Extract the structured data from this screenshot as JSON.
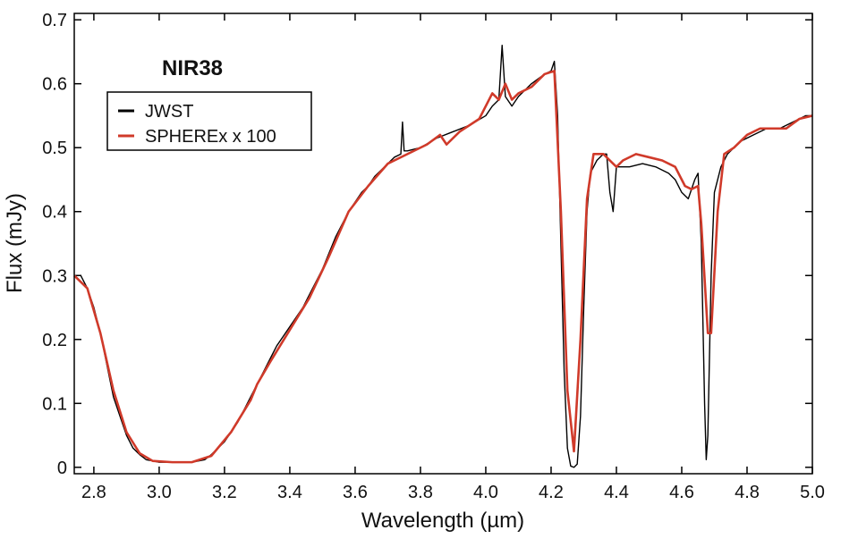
{
  "chart_data": {
    "type": "line",
    "annotation": "NIR38",
    "x_label": "Wavelength (µm)",
    "y_label": "Flux (mJy)",
    "xlim": [
      2.74,
      5.0
    ],
    "ylim": [
      -0.01,
      0.71
    ],
    "xticks": [
      2.8,
      {
        "value": 3,
        "label": "3.0"
      },
      3.2,
      3.4,
      3.6,
      3.8,
      {
        "value": 4,
        "label": "4.0"
      },
      4.2,
      4.4,
      4.6,
      4.8,
      {
        "value": 5,
        "label": "5.0"
      }
    ],
    "yticks": [
      0,
      0.1,
      0.2,
      0.3,
      0.4,
      0.5,
      0.6,
      0.7
    ],
    "legend": "upper left",
    "series": [
      {
        "name": "JWST",
        "color": "#000000",
        "x": [
          2.74,
          2.76,
          2.78,
          2.8,
          2.82,
          2.84,
          2.86,
          2.88,
          2.9,
          2.92,
          2.94,
          2.96,
          2.98,
          3.0,
          3.05,
          3.1,
          3.14,
          3.16,
          3.18,
          3.2,
          3.22,
          3.24,
          3.26,
          3.28,
          3.3,
          3.32,
          3.34,
          3.36,
          3.38,
          3.4,
          3.42,
          3.44,
          3.46,
          3.48,
          3.5,
          3.52,
          3.54,
          3.56,
          3.58,
          3.6,
          3.62,
          3.64,
          3.66,
          3.68,
          3.7,
          3.72,
          3.74,
          3.745,
          3.75,
          3.76,
          3.8,
          3.85,
          3.9,
          3.95,
          4.0,
          4.02,
          4.04,
          4.05,
          4.06,
          4.08,
          4.1,
          4.14,
          4.18,
          4.2,
          4.21,
          4.22,
          4.23,
          4.24,
          4.25,
          4.26,
          4.27,
          4.28,
          4.29,
          4.3,
          4.31,
          4.32,
          4.34,
          4.36,
          4.37,
          4.38,
          4.39,
          4.4,
          4.44,
          4.48,
          4.52,
          4.56,
          4.58,
          4.6,
          4.62,
          4.64,
          4.65,
          4.66,
          4.67,
          4.675,
          4.68,
          4.69,
          4.7,
          4.72,
          4.74,
          4.78,
          4.82,
          4.86,
          4.9,
          4.94,
          4.98,
          5.0
        ],
        "values": [
          0.3,
          0.3,
          0.28,
          0.25,
          0.21,
          0.16,
          0.11,
          0.08,
          0.05,
          0.03,
          0.02,
          0.012,
          0.01,
          0.008,
          0.008,
          0.008,
          0.012,
          0.02,
          0.03,
          0.04,
          0.055,
          0.07,
          0.09,
          0.11,
          0.13,
          0.15,
          0.17,
          0.19,
          0.205,
          0.22,
          0.235,
          0.25,
          0.27,
          0.29,
          0.31,
          0.335,
          0.36,
          0.38,
          0.4,
          0.415,
          0.43,
          0.44,
          0.455,
          0.465,
          0.475,
          0.485,
          0.49,
          0.54,
          0.495,
          0.495,
          0.5,
          0.515,
          0.525,
          0.535,
          0.55,
          0.565,
          0.575,
          0.66,
          0.58,
          0.565,
          0.58,
          0.6,
          0.615,
          0.62,
          0.635,
          0.55,
          0.35,
          0.15,
          0.03,
          0.002,
          0.0,
          0.005,
          0.08,
          0.25,
          0.4,
          0.46,
          0.48,
          0.49,
          0.49,
          0.43,
          0.4,
          0.47,
          0.47,
          0.475,
          0.47,
          0.46,
          0.45,
          0.43,
          0.42,
          0.45,
          0.46,
          0.35,
          0.1,
          0.012,
          0.05,
          0.3,
          0.43,
          0.47,
          0.49,
          0.51,
          0.52,
          0.53,
          0.53,
          0.54,
          0.55,
          0.55
        ]
      },
      {
        "name": "SPHEREx x 100",
        "color": "#d03a2a",
        "x": [
          2.74,
          2.78,
          2.82,
          2.86,
          2.9,
          2.94,
          2.98,
          3.04,
          3.1,
          3.16,
          3.22,
          3.28,
          3.3,
          3.34,
          3.4,
          3.46,
          3.52,
          3.58,
          3.64,
          3.7,
          3.76,
          3.82,
          3.86,
          3.88,
          3.92,
          3.98,
          4.02,
          4.04,
          4.06,
          4.08,
          4.1,
          4.14,
          4.18,
          4.21,
          4.23,
          4.25,
          4.27,
          4.29,
          4.31,
          4.33,
          4.36,
          4.38,
          4.4,
          4.42,
          4.46,
          4.5,
          4.54,
          4.58,
          4.61,
          4.63,
          4.65,
          4.66,
          4.68,
          4.69,
          4.71,
          4.73,
          4.76,
          4.8,
          4.84,
          4.88,
          4.92,
          4.96,
          5.0
        ],
        "values": [
          0.3,
          0.28,
          0.21,
          0.12,
          0.055,
          0.022,
          0.01,
          0.008,
          0.008,
          0.018,
          0.055,
          0.105,
          0.13,
          0.165,
          0.215,
          0.265,
          0.33,
          0.4,
          0.44,
          0.475,
          0.49,
          0.505,
          0.52,
          0.505,
          0.525,
          0.545,
          0.585,
          0.575,
          0.6,
          0.575,
          0.585,
          0.595,
          0.615,
          0.62,
          0.4,
          0.12,
          0.025,
          0.2,
          0.42,
          0.49,
          0.49,
          0.48,
          0.47,
          0.48,
          0.49,
          0.485,
          0.48,
          0.47,
          0.44,
          0.435,
          0.44,
          0.38,
          0.21,
          0.21,
          0.4,
          0.49,
          0.5,
          0.52,
          0.53,
          0.53,
          0.53,
          0.545,
          0.55
        ]
      }
    ]
  }
}
